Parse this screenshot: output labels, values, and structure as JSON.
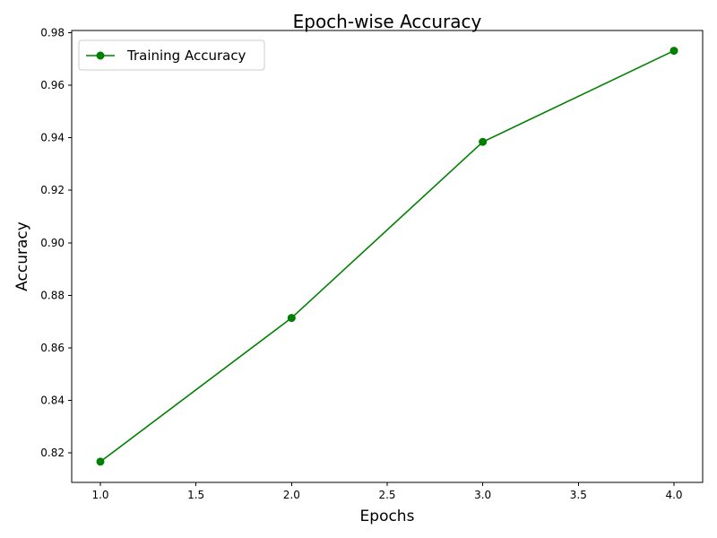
{
  "chart_data": {
    "type": "line",
    "title": "Epoch-wise Accuracy",
    "xlabel": "Epochs",
    "ylabel": "Accuracy",
    "xlim": [
      0.85,
      4.15
    ],
    "ylim": [
      0.8088,
      0.9808
    ],
    "x_ticks": [
      1.0,
      1.5,
      2.0,
      2.5,
      3.0,
      3.5,
      4.0
    ],
    "x_tick_labels": [
      "1.0",
      "1.5",
      "2.0",
      "2.5",
      "3.0",
      "3.5",
      "4.0"
    ],
    "y_ticks": [
      0.82,
      0.84,
      0.86,
      0.88,
      0.9,
      0.92,
      0.94,
      0.96,
      0.98
    ],
    "y_tick_labels": [
      "0.82",
      "0.84",
      "0.86",
      "0.88",
      "0.90",
      "0.92",
      "0.94",
      "0.96",
      "0.98"
    ],
    "grid": false,
    "legend_position": "upper-left",
    "series": [
      {
        "name": "Training Accuracy",
        "color": "#008000",
        "marker": "circle",
        "x": [
          1,
          2,
          3,
          4
        ],
        "y": [
          0.8167,
          0.8714,
          0.9384,
          0.9731
        ]
      }
    ]
  }
}
